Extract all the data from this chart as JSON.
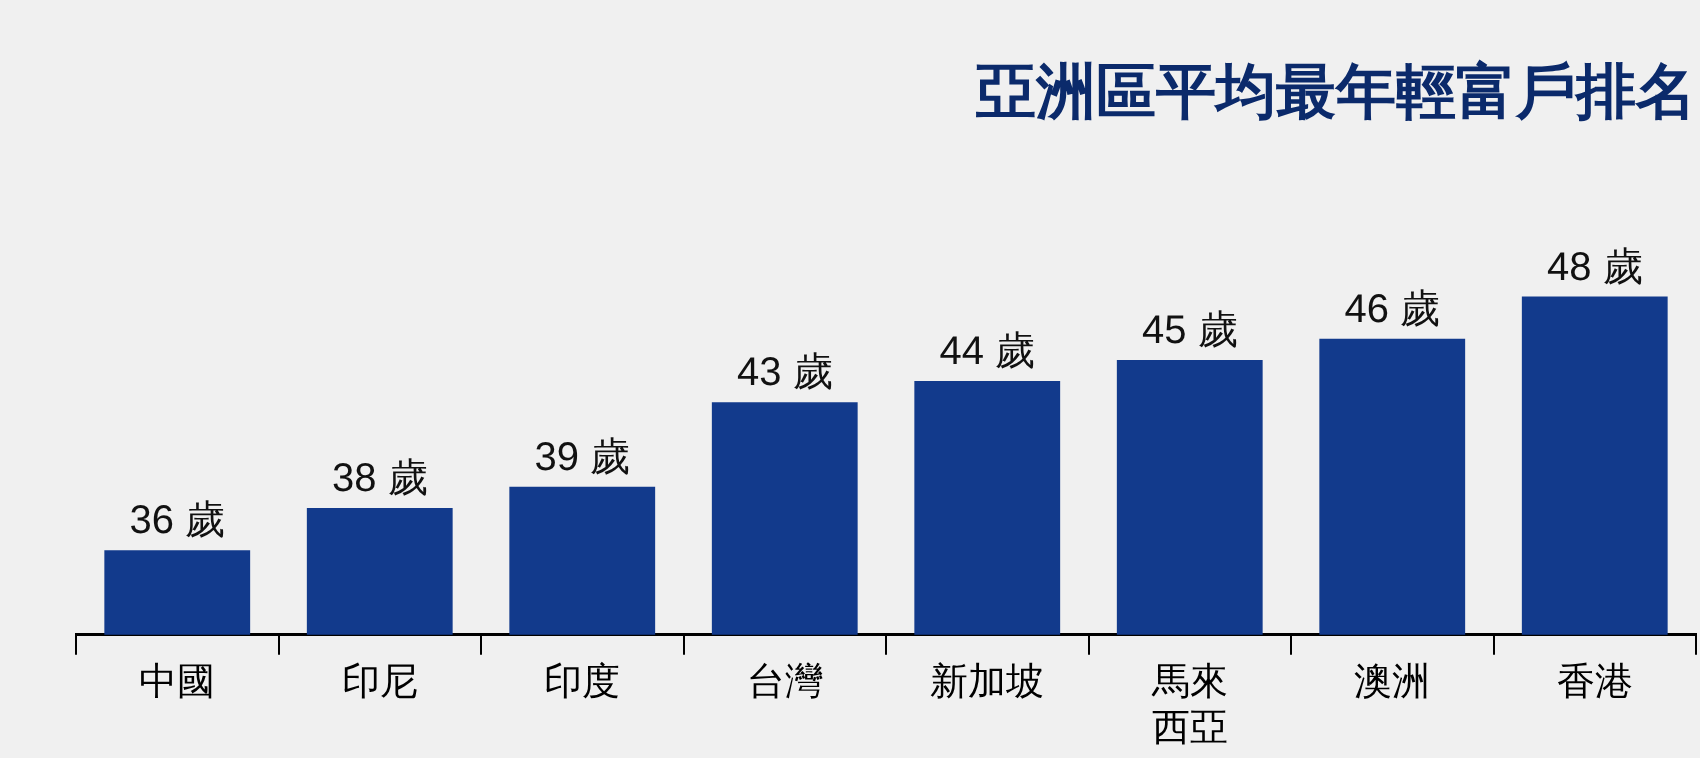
{
  "chart_data": {
    "type": "bar",
    "title": "亞洲區平均最年輕富戶排名",
    "categories": [
      "中國",
      "印尼",
      "印度",
      "台灣",
      "新加坡",
      "馬來西亞",
      "澳洲",
      "香港"
    ],
    "values": [
      36,
      38,
      39,
      43,
      44,
      45,
      46,
      48
    ],
    "value_labels": [
      "36 歲",
      "38 歲",
      "39 歲",
      "43 歲",
      "44 歲",
      "45 歲",
      "46 歲",
      "48 歲"
    ],
    "color": "#123a8c",
    "grid": false,
    "legend": false
  }
}
